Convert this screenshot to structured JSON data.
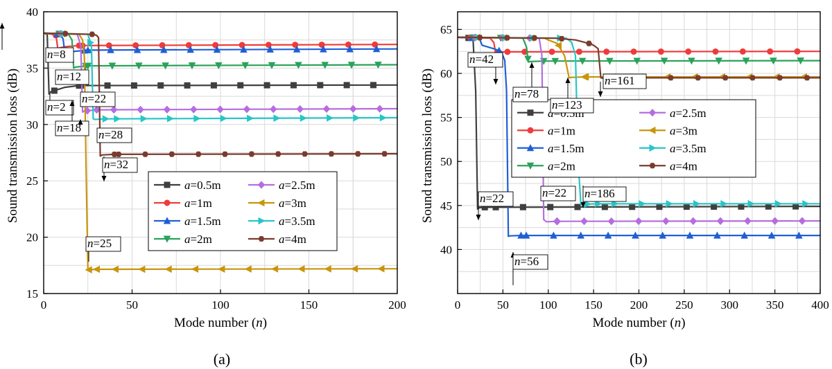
{
  "chart_data": [
    {
      "type": "line",
      "panel_label": "(a)",
      "xlabel_prefix": "Mode number (",
      "xlabel_var": "n",
      "xlabel_suffix": ")",
      "ylabel": "Sound transmission loss (dB)",
      "xlim": [
        0,
        200
      ],
      "ylim": [
        15,
        40
      ],
      "xticks": [
        0,
        50,
        100,
        150,
        200
      ],
      "yticks": [
        15,
        20,
        25,
        30,
        35,
        40
      ],
      "grid": true,
      "legend_position": "center-right",
      "legend_columns": 2,
      "series": [
        {
          "name": "a=0.5m",
          "var": "a",
          "label": "=0.5m",
          "color": "#3f3f3f",
          "marker": "square",
          "points": [
            [
              0,
              38.1
            ],
            [
              2,
              38.0
            ],
            [
              3,
              32.7
            ],
            [
              4,
              32.9
            ],
            [
              8,
              33.1
            ],
            [
              12,
              33.3
            ],
            [
              20,
              33.45
            ],
            [
              200,
              33.5
            ]
          ]
        },
        {
          "name": "a=1m",
          "var": "a",
          "label": "=1m",
          "color": "#ee3b3b",
          "marker": "circle",
          "points": [
            [
              0,
              38.1
            ],
            [
              5,
              38.0
            ],
            [
              7,
              37.9
            ],
            [
              8,
              36.7
            ],
            [
              9,
              36.8
            ],
            [
              12,
              36.9
            ],
            [
              20,
              37.0
            ],
            [
              200,
              37.1
            ]
          ]
        },
        {
          "name": "a=1.5m",
          "var": "a",
          "label": "=1.5m",
          "color": "#1f5fd6",
          "marker": "triangle-up",
          "points": [
            [
              0,
              38.1
            ],
            [
              9,
              38.0
            ],
            [
              11,
              37.6
            ],
            [
              12,
              36.3
            ],
            [
              13,
              36.4
            ],
            [
              18,
              36.5
            ],
            [
              25,
              36.6
            ],
            [
              200,
              36.7
            ]
          ]
        },
        {
          "name": "a=2m",
          "var": "a",
          "label": "=2m",
          "color": "#2aa25a",
          "marker": "triangle-down",
          "points": [
            [
              0,
              38.1
            ],
            [
              14,
              38.0
            ],
            [
              16,
              37.5
            ],
            [
              17,
              35.0
            ],
            [
              18,
              35.1
            ],
            [
              25,
              35.2
            ],
            [
              200,
              35.3
            ]
          ]
        },
        {
          "name": "a=2.5m",
          "var": "a",
          "label": "=2.5m",
          "color": "#b56de0",
          "marker": "diamond",
          "points": [
            [
              0,
              38.1
            ],
            [
              19,
              38.0
            ],
            [
              21,
              37.0
            ],
            [
              22,
              31.1
            ],
            [
              23,
              31.2
            ],
            [
              30,
              31.3
            ],
            [
              200,
              31.4
            ]
          ]
        },
        {
          "name": "a=3m",
          "var": "a",
          "label": "=3m",
          "color": "#c8950c",
          "marker": "triangle-left",
          "points": [
            [
              0,
              38.1
            ],
            [
              20,
              38.0
            ],
            [
              22,
              37.5
            ],
            [
              23,
              36.0
            ],
            [
              24,
              26.0
            ],
            [
              25,
              17.1
            ],
            [
              30,
              17.15
            ],
            [
              200,
              17.2
            ]
          ]
        },
        {
          "name": "a=3.5m",
          "var": "a",
          "label": "=3.5m",
          "color": "#27c6c6",
          "marker": "triangle-right",
          "points": [
            [
              0,
              38.1
            ],
            [
              25,
              38.0
            ],
            [
              27,
              37.0
            ],
            [
              28,
              30.5
            ],
            [
              29,
              30.45
            ],
            [
              35,
              30.5
            ],
            [
              200,
              30.6
            ]
          ]
        },
        {
          "name": "a=4m",
          "var": "a",
          "label": "=4m",
          "color": "#7a3b2e",
          "marker": "hexagon",
          "points": [
            [
              0,
              38.1
            ],
            [
              28,
              38.0
            ],
            [
              30,
              37.9
            ],
            [
              31,
              37.7
            ],
            [
              32,
              27.2
            ],
            [
              33,
              27.3
            ],
            [
              40,
              27.35
            ],
            [
              200,
              27.4
            ]
          ]
        }
      ],
      "annotations": [
        {
          "pre": "",
          "var": "n",
          "post": "=8",
          "value": 8
        },
        {
          "pre": "",
          "var": "n",
          "post": "=12",
          "value": 12
        },
        {
          "pre": "",
          "var": "n",
          "post": "=2",
          "value": 2
        },
        {
          "pre": "",
          "var": "n",
          "post": "=18",
          "value": 18
        },
        {
          "pre": "",
          "var": "n",
          "post": "=22",
          "value": 22
        },
        {
          "pre": "",
          "var": "n",
          "post": "=28",
          "value": 28
        },
        {
          "pre": "",
          "var": "n",
          "post": "=32",
          "value": 32
        },
        {
          "pre": "",
          "var": "n",
          "post": "=25",
          "value": 25
        }
      ]
    },
    {
      "type": "line",
      "panel_label": "(b)",
      "xlabel_prefix": "Mode number (",
      "xlabel_var": "n",
      "xlabel_suffix": ")",
      "ylabel": "Sound transmission loss (dB)",
      "xlim": [
        0,
        400
      ],
      "ylim": [
        35,
        67
      ],
      "xticks": [
        0,
        50,
        100,
        150,
        200,
        250,
        300,
        350,
        400
      ],
      "yticks": [
        40,
        45,
        50,
        55,
        60,
        65
      ],
      "grid": true,
      "legend_position": "center",
      "legend_columns": 2,
      "series": [
        {
          "name": "a=0.5m",
          "var": "a",
          "label": "=0.5m",
          "color": "#3f3f3f",
          "marker": "square",
          "points": [
            [
              0,
              64.1
            ],
            [
              17,
              64.0
            ],
            [
              20,
              58.0
            ],
            [
              22,
              44.6
            ],
            [
              24,
              44.75
            ],
            [
              30,
              44.8
            ],
            [
              400,
              44.9
            ]
          ]
        },
        {
          "name": "a=1m",
          "var": "a",
          "label": "=1m",
          "color": "#ee3b3b",
          "marker": "circle",
          "points": [
            [
              0,
              64.1
            ],
            [
              36,
              64.0
            ],
            [
              40,
              63.5
            ],
            [
              42,
              62.3
            ],
            [
              44,
              62.4
            ],
            [
              55,
              62.45
            ],
            [
              400,
              62.5
            ]
          ]
        },
        {
          "name": "a=1.5m",
          "var": "a",
          "label": "=1.5m",
          "color": "#1f5fd6",
          "marker": "triangle-up",
          "points": [
            [
              0,
              64.1
            ],
            [
              24,
              64.0
            ],
            [
              27,
              63.2
            ],
            [
              40,
              62.8
            ],
            [
              48,
              62.5
            ],
            [
              52,
              61.5
            ],
            [
              54,
              58.0
            ],
            [
              56,
              41.5
            ],
            [
              58,
              41.55
            ],
            [
              70,
              41.6
            ],
            [
              400,
              41.6
            ]
          ]
        },
        {
          "name": "a=2m",
          "var": "a",
          "label": "=2m",
          "color": "#2aa25a",
          "marker": "triangle-down",
          "points": [
            [
              0,
              64.1
            ],
            [
              72,
              64.0
            ],
            [
              76,
              63.0
            ],
            [
              78,
              61.3
            ],
            [
              80,
              61.35
            ],
            [
              95,
              61.4
            ],
            [
              400,
              61.45
            ]
          ]
        },
        {
          "name": "a=2.5m",
          "var": "a",
          "label": "=2.5m",
          "color": "#b56de0",
          "marker": "diamond",
          "points": [
            [
              0,
              64.1
            ],
            [
              90,
              64.0
            ],
            [
              93,
              62.0
            ],
            [
              95,
              43.4
            ],
            [
              98,
              43.15
            ],
            [
              110,
              43.2
            ],
            [
              400,
              43.25
            ]
          ]
        },
        {
          "name": "a=3m",
          "var": "a",
          "label": "=3m",
          "color": "#c8950c",
          "marker": "triangle-left",
          "points": [
            [
              0,
              64.1
            ],
            [
              96,
              64.0
            ],
            [
              100,
              63.8
            ],
            [
              110,
              63.4
            ],
            [
              118,
              62.0
            ],
            [
              123,
              59.5
            ],
            [
              125,
              59.55
            ],
            [
              140,
              59.6
            ],
            [
              400,
              59.6
            ]
          ]
        },
        {
          "name": "a=3.5m",
          "var": "a",
          "label": "=3.5m",
          "color": "#27c6c6",
          "marker": "triangle-right",
          "points": [
            [
              0,
              64.1
            ],
            [
              120,
              64.0
            ],
            [
              126,
              63.5
            ],
            [
              130,
              62.0
            ],
            [
              133,
              50.0
            ],
            [
              136,
              45.1
            ],
            [
              140,
              45.15
            ],
            [
              155,
              45.2
            ],
            [
              400,
              45.2
            ]
          ]
        },
        {
          "name": "a=4m",
          "var": "a",
          "label": "=4m",
          "color": "#7a3b2e",
          "marker": "hexagon",
          "points": [
            [
              0,
              64.1
            ],
            [
              108,
              64.0
            ],
            [
              130,
              63.8
            ],
            [
              145,
              63.4
            ],
            [
              150,
              63.2
            ],
            [
              155,
              62.8
            ],
            [
              158,
              59.5
            ],
            [
              161,
              59.45
            ],
            [
              175,
              59.5
            ],
            [
              400,
              59.5
            ]
          ]
        }
      ],
      "annotations": [
        {
          "pre": "",
          "var": "n",
          "post": "=42",
          "value": 42
        },
        {
          "pre": "",
          "var": "n",
          "post": "=78",
          "value": 78
        },
        {
          "pre": "",
          "var": "n",
          "post": "=123",
          "value": 123
        },
        {
          "pre": "",
          "var": "n",
          "post": "=161",
          "value": 161
        },
        {
          "pre": "",
          "var": "n",
          "post": "=22",
          "value": 22
        },
        {
          "pre": "",
          "var": "n",
          "post": "=22",
          "value": 22
        },
        {
          "pre": "",
          "var": "n",
          "post": "=186",
          "value": 186
        },
        {
          "pre": "",
          "var": "n",
          "post": "=56",
          "value": 56
        }
      ]
    }
  ]
}
